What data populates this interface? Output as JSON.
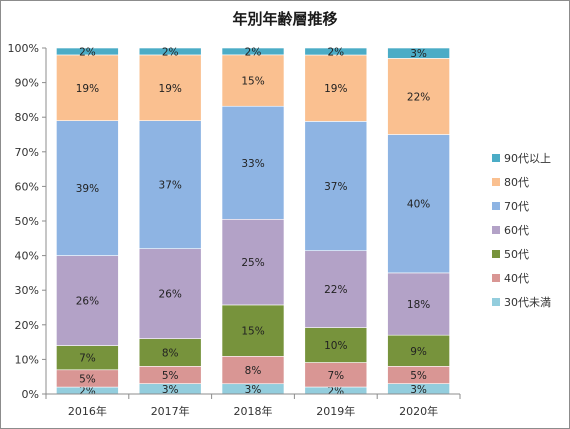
{
  "chart_data": {
    "type": "bar",
    "stacked": true,
    "title": "年別年齢層推移",
    "xlabel": "",
    "ylabel": "",
    "ylim": [
      0,
      100
    ],
    "yticks": [
      "0%",
      "10%",
      "20%",
      "30%",
      "40%",
      "50%",
      "60%",
      "70%",
      "80%",
      "90%",
      "100%"
    ],
    "grid": false,
    "legend_position": "right",
    "categories": [
      "2016年",
      "2017年",
      "2018年",
      "2019年",
      "2020年"
    ],
    "series": [
      {
        "name": "30代未満",
        "color": "#93CDDD",
        "values": [
          2,
          3,
          3,
          2,
          3
        ]
      },
      {
        "name": "40代",
        "color": "#D99694",
        "values": [
          5,
          5,
          8,
          7,
          5
        ]
      },
      {
        "name": "50代",
        "color": "#77933C",
        "values": [
          7,
          8,
          15,
          10,
          9
        ]
      },
      {
        "name": "60代",
        "color": "#B3A2C7",
        "values": [
          26,
          26,
          25,
          22,
          18
        ]
      },
      {
        "name": "70代",
        "color": "#8EB4E3",
        "values": [
          39,
          37,
          33,
          37,
          40
        ]
      },
      {
        "name": "80代",
        "color": "#FAC090",
        "values": [
          19,
          19,
          15,
          19,
          22
        ]
      },
      {
        "name": "90代以上",
        "color": "#4BACC6",
        "values": [
          2,
          2,
          2,
          2,
          3
        ]
      }
    ],
    "data_labels": [
      [
        "2%",
        "3%",
        "3%",
        "2%",
        "3%"
      ],
      [
        "5%",
        "5%",
        "8%",
        "7%",
        "5%"
      ],
      [
        "7%",
        "8%",
        "15%",
        "10%",
        "9%"
      ],
      [
        "26%",
        "26%",
        "25%",
        "22%",
        "18%"
      ],
      [
        "39%",
        "37%",
        "33%",
        "37%",
        "40%"
      ],
      [
        "19%",
        "19%",
        "15%",
        "19%",
        "22%"
      ],
      [
        "2%",
        "2%",
        "2%",
        "2%",
        "3%"
      ]
    ]
  }
}
